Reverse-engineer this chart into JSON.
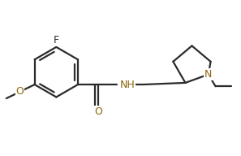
{
  "bg_color": "#ffffff",
  "bond_color": "#2b2b2b",
  "color_F": "#2b2b2b",
  "color_O": "#8B6508",
  "color_N": "#8B6508",
  "figsize": [
    2.97,
    1.92
  ],
  "dpi": 100,
  "xlim": [
    0,
    10
  ],
  "ylim": [
    0,
    6.5
  ],
  "lw": 1.6,
  "fs": 9.0
}
